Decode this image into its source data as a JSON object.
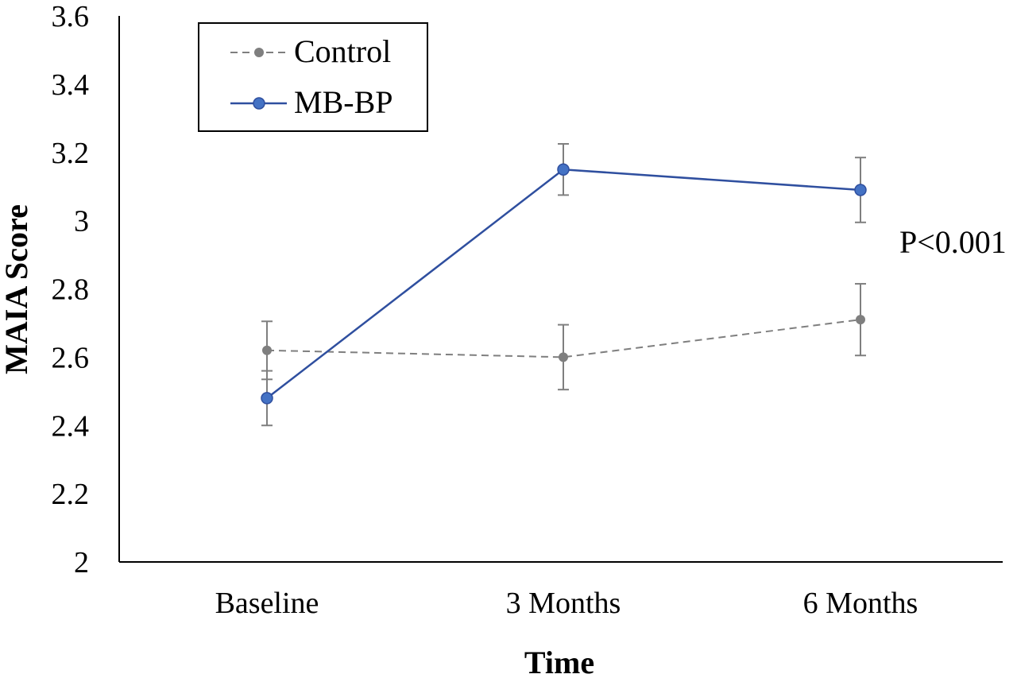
{
  "chart_data": {
    "type": "line",
    "title": "",
    "xlabel": "Time",
    "ylabel": "MAIA Score",
    "categories": [
      "Baseline",
      "3 Months",
      "6 Months"
    ],
    "ylim": [
      2,
      3.6
    ],
    "yticks": [
      "2",
      "2.2",
      "2.4",
      "2.6",
      "2.8",
      "3",
      "3.2",
      "3.4",
      "3.6"
    ],
    "series": [
      {
        "name": "Control",
        "values": [
          2.62,
          2.6,
          2.71
        ],
        "errors": [
          0.085,
          0.095,
          0.105
        ],
        "color": "#7f7f7f",
        "line_style": "dashed",
        "marker": "filled-circle"
      },
      {
        "name": "MB-BP",
        "values": [
          2.48,
          3.15,
          3.09
        ],
        "errors": [
          0.08,
          0.075,
          0.095
        ],
        "color": "#2f4f9f",
        "marker_fill": "#4472c4",
        "line_style": "solid",
        "marker": "filled-circle"
      }
    ],
    "errorbar_color": "#7f7f7f",
    "annotation": "P<0.001",
    "legend_position": "top-left",
    "grid": false
  }
}
